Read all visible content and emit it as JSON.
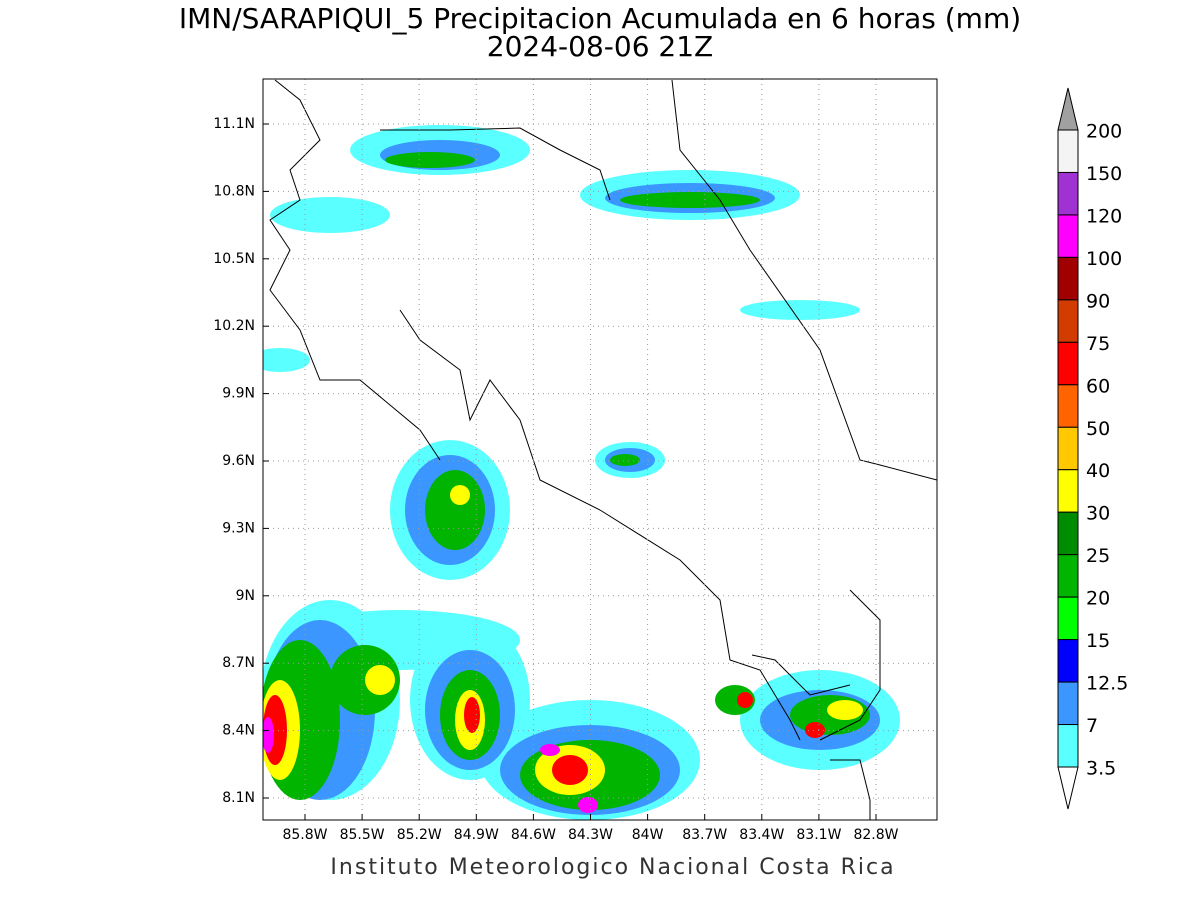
{
  "title": "IMN/SARAPIQUI_5 Precipitacion Acumulada en 6 horas (mm)",
  "subtitle": "2024-08-06 21Z",
  "lat_ticks": [
    "11.1N",
    "10.8N",
    "10.5N",
    "10.2N",
    "9.9N",
    "9.6N",
    "9.3N",
    "9N",
    "8.7N",
    "8.4N",
    "8.1N"
  ],
  "lon_ticks": [
    "85.8W",
    "85.5W",
    "85.2W",
    "84.9W",
    "84.6W",
    "84.3W",
    "84W",
    "83.7W",
    "83.4W",
    "83.1W",
    "82.8W"
  ],
  "colorbar": {
    "labels": [
      "200",
      "150",
      "120",
      "100",
      "90",
      "75",
      "60",
      "50",
      "40",
      "30",
      "25",
      "20",
      "15",
      "12.5",
      "7",
      "3.5"
    ],
    "colors": [
      "#f4f4f4",
      "#a032d2",
      "#ff00ff",
      "#a00000",
      "#d23c00",
      "#ff0000",
      "#ff6400",
      "#ffc800",
      "#ffff00",
      "#008c00",
      "#00b400",
      "#00ff00",
      "#0000ff",
      "#3c96ff",
      "#5affff"
    ]
  },
  "footer": "Instituto Meteorologico Nacional Costa Rica"
}
